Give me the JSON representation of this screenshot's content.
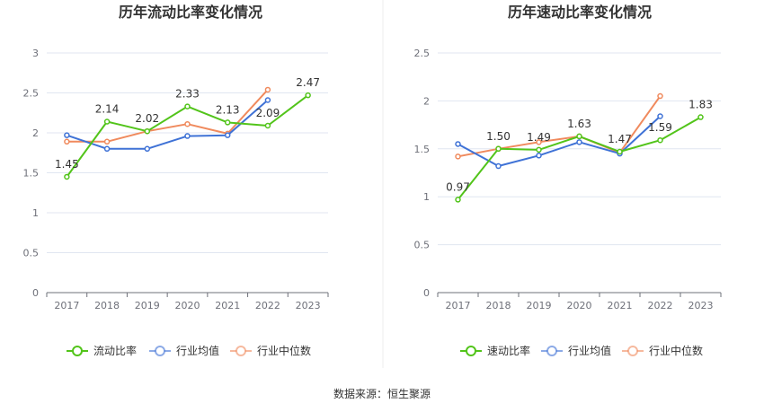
{
  "colors": {
    "primary": "#52c41a",
    "industry_avg": "#3f72d6",
    "industry_median": "#f08a5d",
    "grid": "#e0e6f1",
    "axis": "#6e7079"
  },
  "source": "数据来源：恒生聚源",
  "chart_data": [
    {
      "type": "line",
      "title": "历年流动比率变化情况",
      "categories": [
        "2017",
        "2018",
        "2019",
        "2020",
        "2021",
        "2022",
        "2023"
      ],
      "ylim": [
        0,
        3
      ],
      "yticks": [
        "0",
        "0.5",
        "1",
        "1.5",
        "2",
        "2.5",
        "3"
      ],
      "grid": true,
      "legend_position": "bottom",
      "series": [
        {
          "name": "流动比率",
          "values": [
            1.45,
            2.14,
            2.02,
            2.33,
            2.13,
            2.09,
            2.47
          ],
          "labels": [
            "1.45",
            "2.14",
            "2.02",
            "2.33",
            "2.13",
            "2.09",
            "2.47"
          ]
        },
        {
          "name": "行业均值",
          "values": [
            1.97,
            1.8,
            1.8,
            1.96,
            1.97,
            2.41,
            null
          ]
        },
        {
          "name": "行业中位数",
          "values": [
            1.89,
            1.89,
            2.02,
            2.11,
            1.99,
            2.54,
            null
          ]
        }
      ]
    },
    {
      "type": "line",
      "title": "历年速动比率变化情况",
      "categories": [
        "2017",
        "2018",
        "2019",
        "2020",
        "2021",
        "2022",
        "2023"
      ],
      "ylim": [
        0,
        2.5
      ],
      "yticks": [
        "0",
        "0.5",
        "1",
        "1.5",
        "2",
        "2.5"
      ],
      "grid": true,
      "legend_position": "bottom",
      "series": [
        {
          "name": "速动比率",
          "values": [
            0.97,
            1.5,
            1.49,
            1.63,
            1.47,
            1.59,
            1.83
          ],
          "labels": [
            "0.97",
            "1.50",
            "1.49",
            "1.63",
            "1.47",
            "1.59",
            "1.83"
          ]
        },
        {
          "name": "行业均值",
          "values": [
            1.55,
            1.32,
            1.43,
            1.57,
            1.45,
            1.84,
            null
          ]
        },
        {
          "name": "行业中位数",
          "values": [
            1.42,
            1.5,
            1.57,
            1.63,
            1.46,
            2.05,
            null
          ]
        }
      ]
    }
  ]
}
